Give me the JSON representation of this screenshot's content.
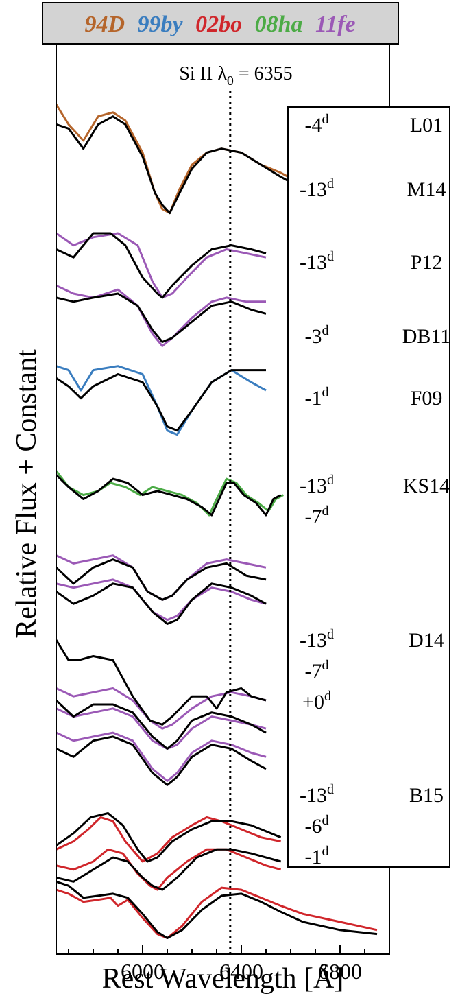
{
  "chart_data": {
    "type": "line",
    "title": "",
    "xlabel": "Rest Wavelength [Å]",
    "ylabel": "Relative Flux + Constant",
    "xlim": [
      5650,
      7000
    ],
    "xticks": [
      6000,
      6400,
      6800
    ],
    "x_tick_labels": [
      "6000",
      "6400",
      "6800"
    ],
    "y_ticks_shown": false,
    "grid": false,
    "reference_line": {
      "label_prefix": "Si II λ",
      "label_subscript": "0",
      "label_suffix": " = 6355",
      "x": 6355,
      "style": "dotted"
    },
    "legend": {
      "placement": "top",
      "entries": [
        {
          "label": "94D",
          "color": "#b5652b"
        },
        {
          "label": "99by",
          "color": "#3a7dbf"
        },
        {
          "label": "02bo",
          "color": "#d0262b"
        },
        {
          "label": "08ha",
          "color": "#4cab46"
        },
        {
          "label": "11fe",
          "color": "#9b59b6"
        }
      ]
    },
    "panels": [
      {
        "model": "L01",
        "epochs": [
          "-4"
        ]
      },
      {
        "model": "M14",
        "epochs": [
          "-13"
        ]
      },
      {
        "model": "P12",
        "epochs": [
          "-13"
        ]
      },
      {
        "model": "DB11",
        "epochs": [
          "-3"
        ]
      },
      {
        "model": "F09",
        "epochs": [
          "-1"
        ]
      },
      {
        "model": "KS14",
        "epochs": [
          "-13",
          "-7"
        ]
      },
      {
        "model": "D14",
        "epochs": [
          "-13",
          "-7",
          "+0"
        ]
      },
      {
        "model": "B15",
        "epochs": [
          "-13",
          "-6",
          "-1"
        ]
      }
    ],
    "epoch_superscript": "d",
    "series": [
      {
        "group": "L01",
        "observed": "94D",
        "offset": 0,
        "obs_x": [
          5650,
          5700,
          5760,
          5820,
          5880,
          5930,
          6000,
          6050,
          6080,
          6110,
          6150,
          6200,
          6260,
          6320,
          6400,
          6480,
          6560,
          6650
        ],
        "obs_y": [
          25.1,
          24.6,
          24.2,
          24.8,
          24.9,
          24.7,
          23.9,
          22.9,
          22.5,
          22.4,
          23.0,
          23.6,
          23.9,
          24.0,
          23.9,
          23.6,
          23.4,
          23.1
        ],
        "model_x": [
          5650,
          5700,
          5760,
          5820,
          5880,
          5930,
          6000,
          6050,
          6080,
          6110,
          6150,
          6200,
          6260,
          6320,
          6400,
          6480,
          6560,
          6650
        ],
        "model_y": [
          24.6,
          24.5,
          24.0,
          24.6,
          24.8,
          24.6,
          23.8,
          22.9,
          22.6,
          22.4,
          22.9,
          23.5,
          23.9,
          24.0,
          23.9,
          23.6,
          23.3,
          23.0
        ]
      },
      {
        "group": "M14",
        "observed": "11fe",
        "offset": 0,
        "obs_x": [
          5650,
          5720,
          5800,
          5900,
          5980,
          6040,
          6080,
          6120,
          6180,
          6260,
          6340,
          6420,
          6500
        ],
        "obs_y": [
          21.9,
          21.6,
          21.8,
          21.9,
          21.6,
          20.7,
          20.3,
          20.4,
          20.8,
          21.3,
          21.5,
          21.4,
          21.3
        ],
        "model_x": [
          5650,
          5720,
          5800,
          5870,
          5930,
          6000,
          6060,
          6080,
          6120,
          6200,
          6280,
          6360,
          6440,
          6500
        ],
        "model_y": [
          21.5,
          21.3,
          21.9,
          21.9,
          21.6,
          20.8,
          20.4,
          20.3,
          20.6,
          21.1,
          21.5,
          21.6,
          21.5,
          21.4
        ]
      },
      {
        "group": "P12",
        "observed": "11fe",
        "offset": 0,
        "obs_x": [
          5650,
          5720,
          5800,
          5900,
          5980,
          6040,
          6080,
          6120,
          6200,
          6280,
          6340,
          6420,
          6500
        ],
        "obs_y": [
          20.6,
          20.4,
          20.3,
          20.5,
          20.1,
          19.4,
          19.1,
          19.3,
          19.8,
          20.2,
          20.3,
          20.2,
          20.2
        ],
        "model_x": [
          5650,
          5720,
          5800,
          5900,
          5980,
          6040,
          6080,
          6120,
          6200,
          6280,
          6360,
          6440,
          6500
        ],
        "model_y": [
          20.3,
          20.2,
          20.3,
          20.4,
          20.1,
          19.5,
          19.2,
          19.3,
          19.7,
          20.1,
          20.2,
          20.0,
          19.9
        ]
      },
      {
        "group": "DB11",
        "observed": "99by",
        "offset": 0,
        "obs_x": [
          5650,
          5700,
          5750,
          5800,
          5900,
          6000,
          6060,
          6100,
          6140,
          6200,
          6280,
          6360,
          6440,
          6500
        ],
        "obs_y": [
          18.6,
          18.5,
          18.0,
          18.5,
          18.6,
          18.4,
          17.6,
          17.0,
          16.9,
          17.5,
          18.2,
          18.5,
          18.2,
          18.0
        ],
        "model_x": [
          5650,
          5700,
          5750,
          5800,
          5900,
          6000,
          6060,
          6100,
          6140,
          6200,
          6280,
          6360,
          6440,
          6500
        ],
        "model_y": [
          18.3,
          18.1,
          17.8,
          18.1,
          18.4,
          18.2,
          17.6,
          17.1,
          17.0,
          17.5,
          18.2,
          18.5,
          18.5,
          18.5
        ]
      },
      {
        "group": "F09",
        "observed": "08ha",
        "offset": 0,
        "obs_x": [
          5650,
          5700,
          5760,
          5820,
          5870,
          5930,
          5990,
          6040,
          6100,
          6160,
          6220,
          6270,
          6300,
          6340,
          6380,
          6420,
          6470,
          6510,
          6540,
          6570
        ],
        "obs_y": [
          16.0,
          15.6,
          15.4,
          15.5,
          15.7,
          15.6,
          15.4,
          15.6,
          15.5,
          15.4,
          15.2,
          14.9,
          15.3,
          15.8,
          15.7,
          15.4,
          15.2,
          15.0,
          15.3,
          15.4
        ],
        "model_x": [
          5650,
          5700,
          5760,
          5820,
          5880,
          5940,
          6000,
          6060,
          6120,
          6180,
          6240,
          6280,
          6310,
          6340,
          6370,
          6410,
          6460,
          6500,
          6530,
          6560
        ],
        "model_y": [
          15.9,
          15.6,
          15.3,
          15.5,
          15.8,
          15.7,
          15.4,
          15.5,
          15.4,
          15.3,
          15.1,
          14.9,
          15.3,
          15.7,
          15.7,
          15.4,
          15.2,
          14.9,
          15.3,
          15.4
        ]
      },
      {
        "group": "KS14-13d",
        "observed": "11fe",
        "offset": 0,
        "obs_x": [
          5650,
          5720,
          5800,
          5880,
          5960,
          6020,
          6080,
          6120,
          6180,
          6260,
          6340,
          6420,
          6500
        ],
        "obs_y": [
          13.9,
          13.7,
          13.8,
          13.9,
          13.6,
          13.0,
          12.8,
          12.9,
          13.3,
          13.7,
          13.8,
          13.7,
          13.6
        ],
        "model_x": [
          5650,
          5720,
          5800,
          5880,
          5960,
          6020,
          6080,
          6120,
          6180,
          6260,
          6340,
          6420,
          6500
        ],
        "model_y": [
          13.6,
          13.2,
          13.6,
          13.8,
          13.6,
          13.0,
          12.8,
          12.9,
          13.3,
          13.6,
          13.7,
          13.4,
          13.3
        ]
      },
      {
        "group": "KS14-7d",
        "observed": "11fe",
        "offset": 0,
        "obs_x": [
          5650,
          5720,
          5800,
          5880,
          5960,
          6040,
          6100,
          6140,
          6200,
          6280,
          6360,
          6440,
          6500
        ],
        "obs_y": [
          13.2,
          13.1,
          13.2,
          13.3,
          13.1,
          12.5,
          12.3,
          12.4,
          12.8,
          13.1,
          13.0,
          12.8,
          12.7
        ],
        "model_x": [
          5650,
          5720,
          5800,
          5880,
          5960,
          6040,
          6100,
          6140,
          6200,
          6280,
          6360,
          6440,
          6500
        ],
        "model_y": [
          13.0,
          12.7,
          12.9,
          13.2,
          13.1,
          12.5,
          12.2,
          12.3,
          12.8,
          13.2,
          13.1,
          12.9,
          12.7
        ]
      },
      {
        "group": "D14-13d",
        "observed": "11fe",
        "offset": 0,
        "obs_x": [
          5650,
          5720,
          5800,
          5880,
          5960,
          6030,
          6080,
          6120,
          6200,
          6280,
          6360,
          6440,
          6500
        ],
        "obs_y": [
          10.6,
          10.4,
          10.5,
          10.6,
          10.3,
          9.8,
          9.6,
          9.7,
          10.1,
          10.4,
          10.5,
          10.4,
          10.3
        ],
        "model_x": [
          5650,
          5700,
          5740,
          5800,
          5880,
          5960,
          6030,
          6080,
          6120,
          6200,
          6260,
          6300,
          6340,
          6400,
          6440,
          6500
        ],
        "model_y": [
          11.8,
          11.3,
          11.3,
          11.4,
          11.3,
          10.4,
          9.8,
          9.7,
          9.9,
          10.4,
          10.4,
          10.1,
          10.5,
          10.6,
          10.4,
          10.3
        ]
      },
      {
        "group": "D14-7d",
        "observed": "11fe",
        "offset": 0,
        "obs_x": [
          5650,
          5720,
          5800,
          5880,
          5960,
          6040,
          6100,
          6140,
          6200,
          6280,
          6360,
          6440,
          6500
        ],
        "obs_y": [
          10.1,
          9.9,
          10.0,
          10.1,
          9.9,
          9.3,
          9.1,
          9.2,
          9.6,
          9.9,
          9.8,
          9.7,
          9.6
        ],
        "model_x": [
          5650,
          5720,
          5800,
          5880,
          5960,
          6040,
          6100,
          6140,
          6200,
          6280,
          6360,
          6440,
          6500
        ],
        "model_y": [
          10.3,
          9.9,
          10.2,
          10.2,
          10.0,
          9.4,
          9.1,
          9.3,
          9.8,
          10.0,
          9.9,
          9.7,
          9.5
        ]
      },
      {
        "group": "D14+0d",
        "observed": "11fe",
        "offset": 0,
        "obs_x": [
          5650,
          5720,
          5800,
          5880,
          5960,
          6040,
          6100,
          6140,
          6200,
          6280,
          6360,
          6440,
          6500
        ],
        "obs_y": [
          9.5,
          9.3,
          9.4,
          9.5,
          9.3,
          8.6,
          8.3,
          8.5,
          9.0,
          9.3,
          9.2,
          9.0,
          8.9
        ],
        "model_x": [
          5650,
          5720,
          5800,
          5880,
          5960,
          6040,
          6100,
          6140,
          6200,
          6280,
          6360,
          6440,
          6500
        ],
        "model_y": [
          9.1,
          8.9,
          9.3,
          9.4,
          9.2,
          8.5,
          8.2,
          8.4,
          8.9,
          9.2,
          9.1,
          8.8,
          8.6
        ]
      },
      {
        "group": "B15-13d",
        "observed": "02bo",
        "offset": 0,
        "obs_x": [
          5650,
          5720,
          5780,
          5830,
          5880,
          5930,
          6000,
          6060,
          6120,
          6200,
          6260,
          6320,
          6400,
          6480,
          6560
        ],
        "obs_y": [
          6.6,
          6.8,
          7.1,
          7.4,
          7.3,
          6.8,
          6.3,
          6.5,
          6.9,
          7.2,
          7.4,
          7.3,
          7.1,
          6.9,
          6.8
        ],
        "model_x": [
          5650,
          5720,
          5790,
          5860,
          5920,
          5980,
          6020,
          6060,
          6120,
          6200,
          6280,
          6360,
          6440,
          6520,
          6560
        ],
        "model_y": [
          6.7,
          7.0,
          7.4,
          7.5,
          7.2,
          6.6,
          6.3,
          6.4,
          6.8,
          7.1,
          7.3,
          7.3,
          7.2,
          7.0,
          6.9
        ]
      },
      {
        "group": "B15-6d",
        "observed": "02bo",
        "offset": 0,
        "obs_x": [
          5650,
          5720,
          5800,
          5860,
          5920,
          5980,
          6030,
          6060,
          6100,
          6180,
          6260,
          6340,
          6420,
          6500,
          6560
        ],
        "obs_y": [
          6.2,
          6.1,
          6.3,
          6.6,
          6.5,
          6.0,
          5.7,
          5.6,
          5.9,
          6.3,
          6.6,
          6.6,
          6.4,
          6.2,
          6.1
        ],
        "model_x": [
          5650,
          5720,
          5800,
          5880,
          5940,
          6000,
          6040,
          6080,
          6140,
          6220,
          6300,
          6360,
          6440,
          6500,
          6560
        ],
        "model_y": [
          5.9,
          5.8,
          6.1,
          6.4,
          6.3,
          5.9,
          5.7,
          5.6,
          5.9,
          6.4,
          6.6,
          6.6,
          6.5,
          6.4,
          6.3
        ]
      },
      {
        "group": "B15-1d",
        "observed": "02bo",
        "offset": 0,
        "obs_x": [
          5650,
          5700,
          5760,
          5820,
          5870,
          5900,
          5940,
          6000,
          6060,
          6100,
          6160,
          6240,
          6320,
          6400,
          6480,
          6560,
          6650,
          6800,
          6950
        ],
        "obs_y": [
          5.6,
          5.5,
          5.3,
          5.35,
          5.4,
          5.2,
          5.35,
          4.9,
          4.5,
          4.4,
          4.7,
          5.3,
          5.65,
          5.6,
          5.4,
          5.2,
          5.0,
          4.8,
          4.6
        ],
        "model_x": [
          5650,
          5700,
          5760,
          5820,
          5880,
          5940,
          6000,
          6060,
          6100,
          6160,
          6240,
          6320,
          6400,
          6480,
          6560,
          6650,
          6800,
          6950
        ],
        "model_y": [
          5.8,
          5.7,
          5.4,
          5.45,
          5.5,
          5.4,
          5.0,
          4.55,
          4.4,
          4.6,
          5.1,
          5.45,
          5.5,
          5.3,
          5.05,
          4.8,
          4.6,
          4.5
        ]
      }
    ],
    "ylim": [
      4.0,
      26.6
    ]
  }
}
